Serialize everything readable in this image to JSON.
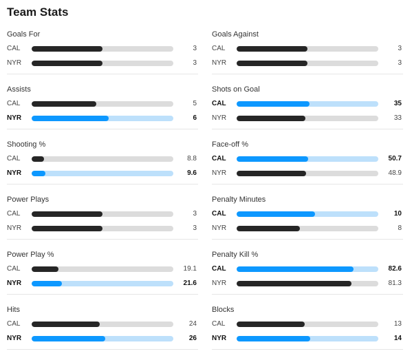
{
  "title": "Team Stats",
  "colors": {
    "bar_default": "#262626",
    "track_default": "#dcdcdc",
    "bar_leader": "#0d98ff",
    "track_leader": "#bde0fb"
  },
  "columns": [
    {
      "stats": [
        {
          "label": "Goals For",
          "rows": [
            {
              "team": "CAL",
              "value": "3",
              "fill": 0.5,
              "leader": false
            },
            {
              "team": "NYR",
              "value": "3",
              "fill": 0.5,
              "leader": false
            }
          ]
        },
        {
          "label": "Assists",
          "rows": [
            {
              "team": "CAL",
              "value": "5",
              "fill": 0.4545,
              "leader": false
            },
            {
              "team": "NYR",
              "value": "6",
              "fill": 0.5455,
              "leader": true
            }
          ]
        },
        {
          "label": "Shooting %",
          "rows": [
            {
              "team": "CAL",
              "value": "8.8",
              "fill": 0.088,
              "leader": false
            },
            {
              "team": "NYR",
              "value": "9.6",
              "fill": 0.096,
              "leader": true
            }
          ]
        },
        {
          "label": "Power Plays",
          "rows": [
            {
              "team": "CAL",
              "value": "3",
              "fill": 0.5,
              "leader": false
            },
            {
              "team": "NYR",
              "value": "3",
              "fill": 0.5,
              "leader": false
            }
          ]
        },
        {
          "label": "Power Play %",
          "rows": [
            {
              "team": "CAL",
              "value": "19.1",
              "fill": 0.191,
              "leader": false
            },
            {
              "team": "NYR",
              "value": "21.6",
              "fill": 0.216,
              "leader": true
            }
          ]
        },
        {
          "label": "Hits",
          "rows": [
            {
              "team": "CAL",
              "value": "24",
              "fill": 0.48,
              "leader": false
            },
            {
              "team": "NYR",
              "value": "26",
              "fill": 0.52,
              "leader": true
            }
          ]
        }
      ]
    },
    {
      "stats": [
        {
          "label": "Goals Against",
          "rows": [
            {
              "team": "CAL",
              "value": "3",
              "fill": 0.5,
              "leader": false
            },
            {
              "team": "NYR",
              "value": "3",
              "fill": 0.5,
              "leader": false
            }
          ]
        },
        {
          "label": "Shots on Goal",
          "rows": [
            {
              "team": "CAL",
              "value": "35",
              "fill": 0.5147,
              "leader": true
            },
            {
              "team": "NYR",
              "value": "33",
              "fill": 0.4853,
              "leader": false
            }
          ]
        },
        {
          "label": "Face-off %",
          "rows": [
            {
              "team": "CAL",
              "value": "50.7",
              "fill": 0.507,
              "leader": true
            },
            {
              "team": "NYR",
              "value": "48.9",
              "fill": 0.489,
              "leader": false
            }
          ]
        },
        {
          "label": "Penalty Minutes",
          "rows": [
            {
              "team": "CAL",
              "value": "10",
              "fill": 0.5556,
              "leader": true
            },
            {
              "team": "NYR",
              "value": "8",
              "fill": 0.4444,
              "leader": false
            }
          ]
        },
        {
          "label": "Penalty Kill %",
          "rows": [
            {
              "team": "CAL",
              "value": "82.6",
              "fill": 0.826,
              "leader": true
            },
            {
              "team": "NYR",
              "value": "81.3",
              "fill": 0.813,
              "leader": false
            }
          ]
        },
        {
          "label": "Blocks",
          "rows": [
            {
              "team": "CAL",
              "value": "13",
              "fill": 0.4815,
              "leader": false
            },
            {
              "team": "NYR",
              "value": "14",
              "fill": 0.5185,
              "leader": true
            }
          ]
        }
      ]
    }
  ]
}
